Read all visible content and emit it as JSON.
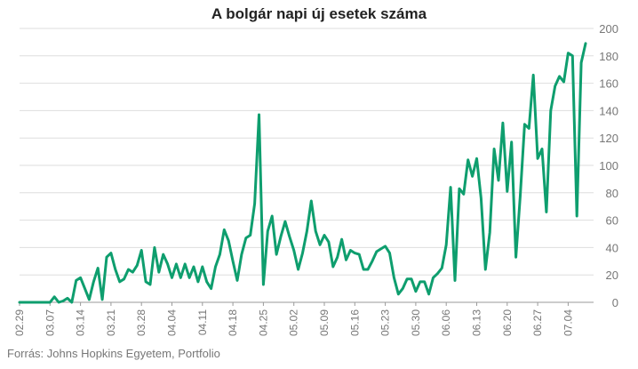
{
  "chart_data": {
    "type": "line",
    "title": "A bolgár napi új esetek száma",
    "source": "Forrás: Johns Hopkins Egyetem, Portfolio",
    "xlabel": "",
    "ylabel": "",
    "ylim": [
      0,
      200
    ],
    "yticks": [
      0,
      20,
      40,
      60,
      80,
      100,
      120,
      140,
      160,
      180,
      200
    ],
    "grid": true,
    "line_color": "#0e9e6e",
    "x_tick_labels": [
      "02.29",
      "03.07",
      "03.14",
      "03.21",
      "03.28",
      "04.04",
      "04.11",
      "04.18",
      "04.25",
      "05.02",
      "05.09",
      "05.16",
      "05.23",
      "05.30",
      "06.06",
      "06.13",
      "06.20",
      "06.27",
      "07.04"
    ],
    "x_start": "02.29",
    "series": [
      {
        "values": [
          0,
          0,
          0,
          0,
          0,
          0,
          0,
          0,
          4,
          0,
          1,
          3,
          0,
          16,
          18,
          10,
          2,
          15,
          25,
          2,
          33,
          36,
          24,
          15,
          17,
          24,
          22,
          27,
          38,
          15,
          13,
          40,
          22,
          35,
          28,
          18,
          28,
          18,
          28,
          18,
          26,
          15,
          26,
          15,
          10,
          26,
          35,
          53,
          45,
          30,
          16,
          35,
          47,
          49,
          72,
          137,
          13,
          52,
          63,
          35,
          48,
          59,
          48,
          38,
          24,
          36,
          52,
          74,
          52,
          42,
          49,
          44,
          26,
          33,
          46,
          31,
          38,
          36,
          35,
          24,
          24,
          30,
          37,
          39,
          41,
          36,
          18,
          6,
          10,
          17,
          17,
          8,
          15,
          15,
          6,
          18,
          21,
          25,
          42,
          84,
          16,
          83,
          79,
          104,
          92,
          105,
          76,
          24,
          51,
          112,
          89,
          131,
          81,
          117,
          33,
          78,
          130,
          127,
          166,
          105,
          112,
          66,
          140,
          158,
          165,
          161,
          182,
          180,
          63,
          175,
          189
        ]
      }
    ]
  }
}
